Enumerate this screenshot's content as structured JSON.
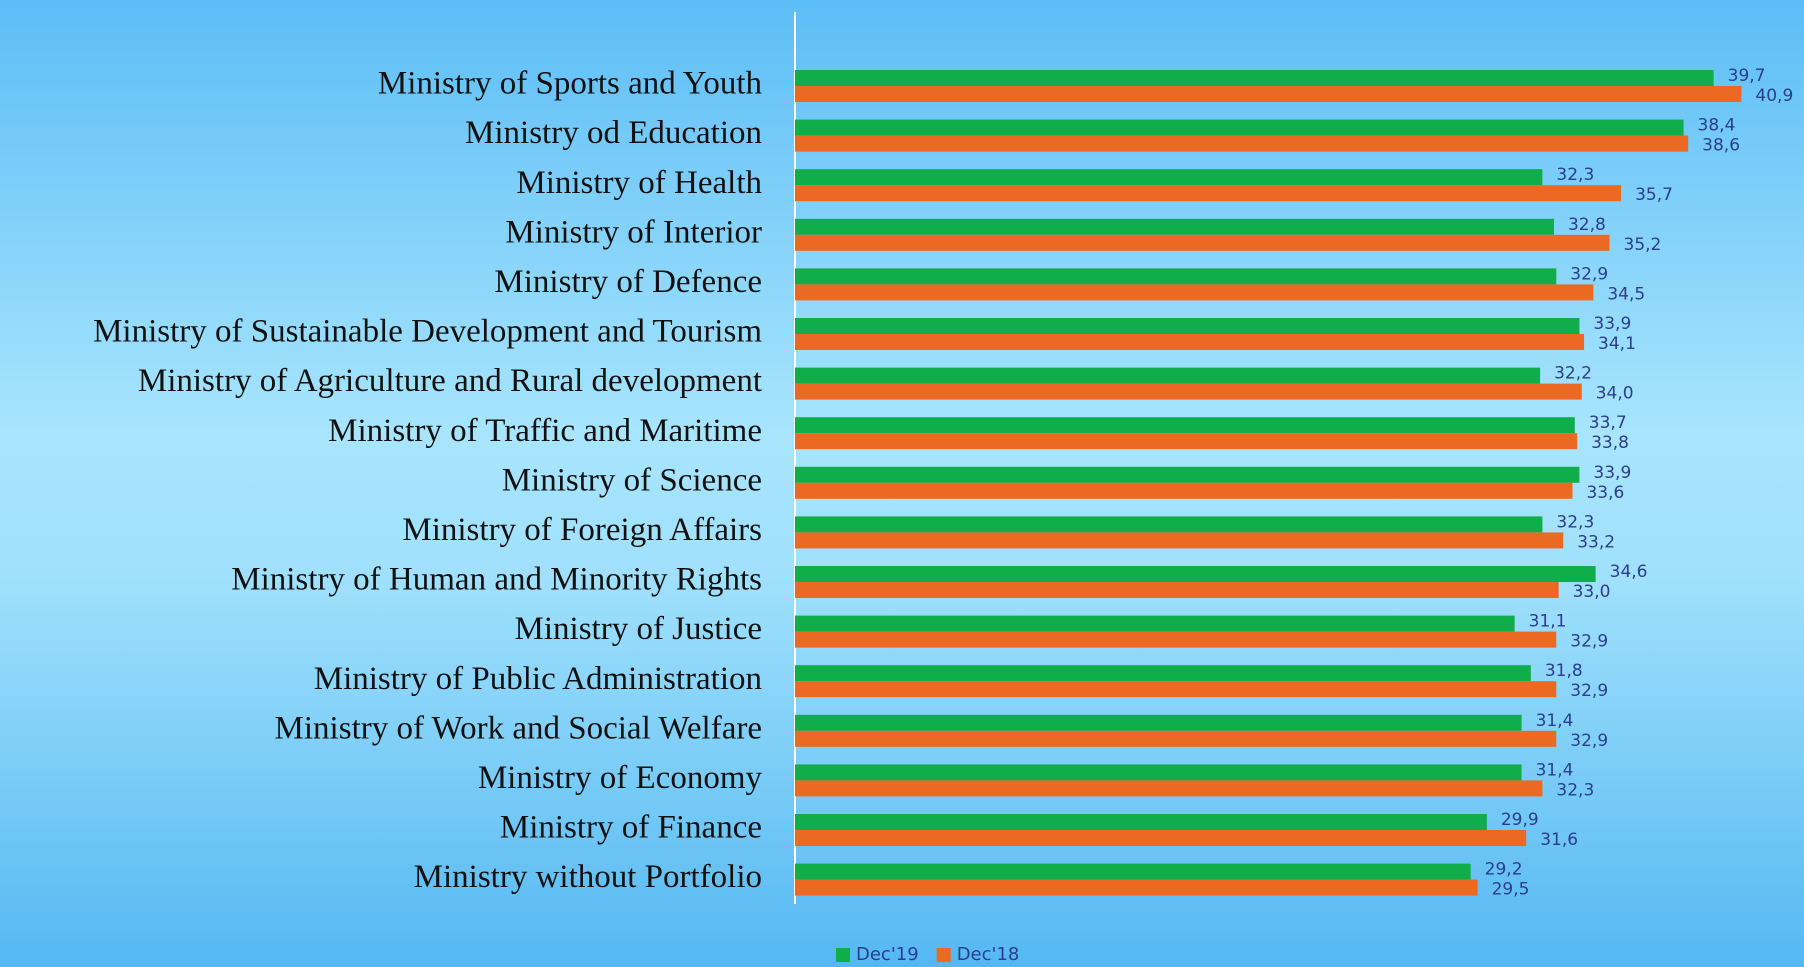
{
  "chart_data": {
    "type": "barh",
    "categories": [
      "Ministry of Sports and Youth",
      "Ministry od Education",
      "Ministry of Health",
      "Ministry of Interior",
      "Ministry of Defence",
      "Ministry of Sustainable Development and Tourism",
      "Ministry of Agriculture and Rural development",
      "Ministry of Traffic and Maritime",
      "Ministry of Science",
      "Ministry of Foreign Affairs",
      "Ministry of Human and Minority Rights",
      "Ministry of Justice",
      "Ministry of Public Administration",
      "Ministry of Work and Social Welfare",
      "Ministry of Economy",
      "Ministry of Finance",
      "Ministry without Portfolio"
    ],
    "series": [
      {
        "name": "Dec'19",
        "color": "#10ad4b",
        "values": [
          39.7,
          38.4,
          32.3,
          32.8,
          32.9,
          33.9,
          32.2,
          33.7,
          33.9,
          32.3,
          34.6,
          31.1,
          31.8,
          31.4,
          31.4,
          29.9,
          29.2
        ],
        "value_labels": [
          "39,7",
          "38,4",
          "32,3",
          "32,8",
          "32,9",
          "33,9",
          "32,2",
          "33,7",
          "33,9",
          "32,3",
          "34,6",
          "31,1",
          "31,8",
          "31,4",
          "31,4",
          "29,9",
          "29,2"
        ]
      },
      {
        "name": "Dec'18",
        "color": "#ec6923",
        "values": [
          40.9,
          38.6,
          35.7,
          35.2,
          34.5,
          34.1,
          34.0,
          33.8,
          33.6,
          33.2,
          33.0,
          32.9,
          32.9,
          32.9,
          32.3,
          31.6,
          29.5
        ],
        "value_labels": [
          "40,9",
          "38,6",
          "35,7",
          "35,2",
          "34,5",
          "34,1",
          "34,0",
          "33,8",
          "33,6",
          "33,2",
          "33,0",
          "32,9",
          "32,9",
          "32,9",
          "32,3",
          "31,6",
          "29,5"
        ]
      }
    ],
    "xlim": [
      0,
      43
    ]
  }
}
